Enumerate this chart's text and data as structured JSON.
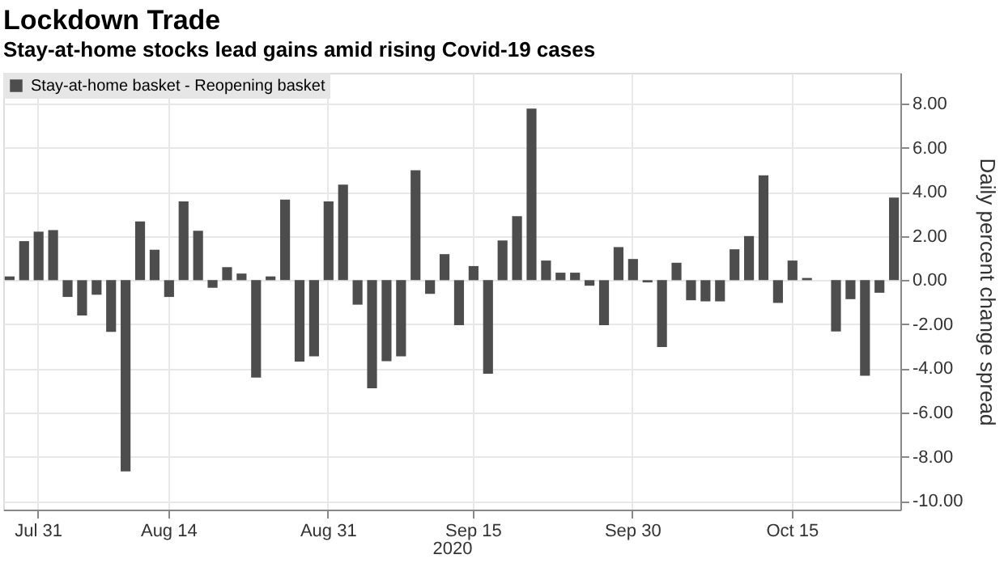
{
  "chart_data": {
    "type": "bar",
    "title": "Lockdown Trade",
    "subtitle": "Stay-at-home stocks lead gains amid rising Covid-19 cases",
    "xlabel": "2020",
    "ylabel": "Daily percent change spread",
    "categories": [
      null,
      null,
      "Jul 31",
      null,
      null,
      null,
      null,
      null,
      null,
      null,
      null,
      "Aug 14",
      null,
      null,
      null,
      null,
      null,
      null,
      null,
      null,
      null,
      null,
      "Aug 31",
      null,
      null,
      null,
      null,
      null,
      null,
      null,
      null,
      null,
      "Sep 15",
      null,
      null,
      null,
      null,
      null,
      null,
      null,
      null,
      null,
      null,
      "Sep 30",
      null,
      null,
      null,
      null,
      null,
      null,
      null,
      null,
      null,
      null,
      "Oct 15",
      null,
      null,
      null,
      null,
      null,
      null,
      null
    ],
    "series": [
      {
        "name": "Stay-at-home basket - Reopening basket",
        "color": "#4d4d4d",
        "values": [
          0.17,
          1.77,
          2.2,
          2.27,
          -0.76,
          -1.6,
          -0.66,
          -2.34,
          -8.67,
          2.66,
          1.38,
          -0.76,
          3.57,
          2.24,
          -0.34,
          0.59,
          0.3,
          -4.41,
          0.17,
          3.65,
          -3.69,
          -3.45,
          3.57,
          4.33,
          -1.11,
          -4.9,
          -3.67,
          -3.45,
          4.98,
          -0.62,
          1.18,
          -2.04,
          0.64,
          -4.24,
          1.8,
          2.9,
          7.78,
          0.89,
          0.34,
          0.34,
          -0.25,
          -2.04,
          1.5,
          0.96,
          -0.1,
          -3.03,
          0.79,
          -0.91,
          -0.96,
          -0.96,
          1.4,
          2.0,
          4.75,
          -1.03,
          0.89,
          0.1,
          null,
          -2.32,
          -0.86,
          -4.33,
          -0.57,
          3.74
        ]
      }
    ],
    "ylim": [
      -10.4,
      9.4
    ],
    "yticks": [
      {
        "value": -10,
        "label": "-10.00"
      },
      {
        "value": -8,
        "label": "-8.00"
      },
      {
        "value": -6,
        "label": "-6.00"
      },
      {
        "value": -4,
        "label": "-4.00"
      },
      {
        "value": -2,
        "label": "-2.00"
      },
      {
        "value": 0,
        "label": "0.00"
      },
      {
        "value": 2,
        "label": "2.00"
      },
      {
        "value": 4,
        "label": "4.00"
      },
      {
        "value": 6,
        "label": "6.00"
      },
      {
        "value": 8,
        "label": "8.00"
      }
    ],
    "grid": true,
    "legend": "top left"
  }
}
